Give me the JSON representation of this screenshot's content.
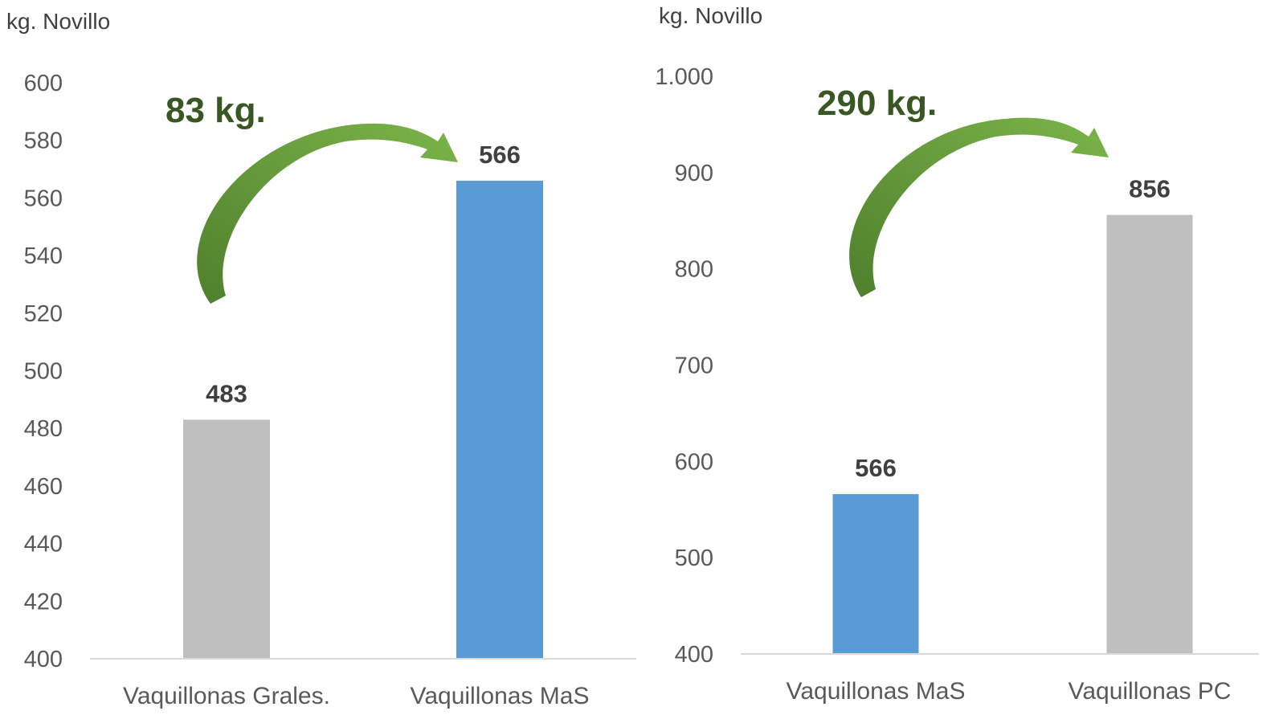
{
  "chart_data": [
    {
      "type": "bar",
      "ylabel": "kg. Novillo",
      "ylim": [
        400,
        600
      ],
      "yticks": [
        "400",
        "420",
        "440",
        "460",
        "480",
        "500",
        "520",
        "540",
        "560",
        "580",
        "600"
      ],
      "categories": [
        "Vaquillonas Grales.",
        "Vaquillonas MaS"
      ],
      "values": [
        483,
        566
      ],
      "value_labels": [
        "483",
        "566"
      ],
      "bar_colors": [
        "#bfbfbf",
        "#5b9bd5"
      ],
      "annotation": "83 kg.",
      "arrow_color": "#70ad47",
      "grid": false
    },
    {
      "type": "bar",
      "ylabel": "kg. Novillo",
      "ylim": [
        400,
        1000
      ],
      "yticks": [
        "400",
        "500",
        "600",
        "700",
        "800",
        "900",
        "1.000"
      ],
      "categories": [
        "Vaquillonas MaS",
        "Vaquillonas PC"
      ],
      "values": [
        566,
        856
      ],
      "value_labels": [
        "566",
        "856"
      ],
      "bar_colors": [
        "#5b9bd5",
        "#bfbfbf"
      ],
      "annotation": "290 kg.",
      "arrow_color": "#70ad47",
      "grid": false
    }
  ]
}
